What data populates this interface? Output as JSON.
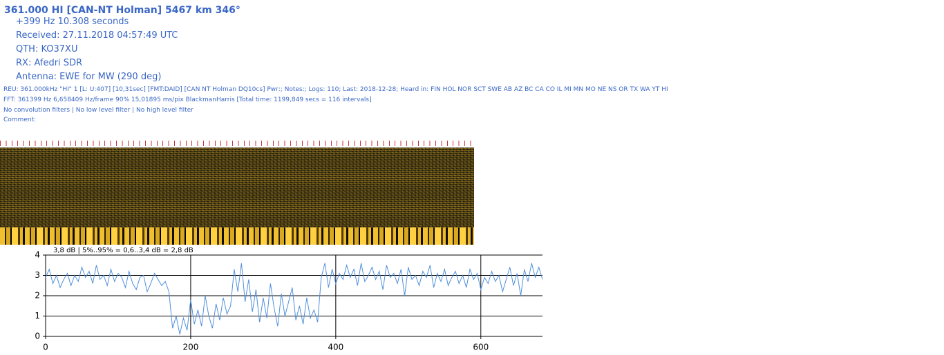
{
  "header": {
    "title": "361.000 HI [CAN-NT Holman] 5467 km 346°",
    "lines": [
      "+399 Hz 10.308 seconds",
      "Received: 27.11.2018 04:57:49 UTC",
      "QTH: KO37XU",
      "RX: Afedri SDR",
      "Antenna: EWE for MW (290 deg)"
    ],
    "details": [
      "REU: 361.000kHz \"HI\" 1 [L: U:407] [10,31sec] [FMT:DAID] [CAN NT Holman DQ10cs] Pwr:; Notes:; Logs: 110; Last: 2018-12-28; Heard in: FIN HOL NOR SCT SWE AB AZ BC CA CO IL MI MN MO NE NS OR TX WA YT HI",
      "FFT: 361399 Hz 6,658409 Hz/frame 90% 15,01895 ms/pix BlackmanHarris [Total time: 1199,849 secs = 116 intervals]",
      "No convolution filters | No low level filter | No high level filter",
      "Comment:"
    ]
  },
  "chart_data": {
    "type": "line",
    "annotation": "3,8 dB | 5%..95% = 0,6..3,4 dB = 2,8 dB",
    "color": "#4f8fdc",
    "x": [
      0,
      5,
      10,
      15,
      20,
      25,
      30,
      35,
      40,
      45,
      50,
      55,
      60,
      65,
      70,
      75,
      80,
      85,
      90,
      95,
      100,
      105,
      110,
      115,
      120,
      125,
      130,
      135,
      140,
      145,
      150,
      155,
      160,
      165,
      170,
      175,
      180,
      185,
      190,
      195,
      200,
      205,
      210,
      215,
      220,
      225,
      230,
      235,
      240,
      245,
      250,
      255,
      260,
      265,
      270,
      275,
      280,
      285,
      290,
      295,
      300,
      305,
      310,
      315,
      320,
      325,
      330,
      335,
      340,
      345,
      350,
      355,
      360,
      365,
      370,
      375,
      380,
      385,
      390,
      395,
      400,
      405,
      410,
      415,
      420,
      425,
      430,
      435,
      440,
      445,
      450,
      455,
      460,
      465,
      470,
      475,
      480,
      485,
      490,
      495,
      500,
      505,
      510,
      515,
      520,
      525,
      530,
      535,
      540,
      545,
      550,
      555,
      560,
      565,
      570,
      575,
      580,
      585,
      590,
      595,
      600,
      605,
      610,
      615,
      620,
      625,
      630,
      635,
      640,
      645,
      650,
      655,
      660,
      665,
      670,
      675,
      680,
      685
    ],
    "values": [
      2.9,
      3.3,
      2.6,
      3.0,
      2.4,
      2.8,
      3.1,
      2.5,
      3.0,
      2.7,
      3.4,
      2.9,
      3.2,
      2.6,
      3.5,
      2.8,
      3.0,
      2.5,
      3.3,
      2.7,
      3.1,
      2.9,
      2.4,
      3.2,
      2.6,
      2.3,
      2.9,
      3.0,
      2.2,
      2.6,
      3.1,
      2.8,
      2.5,
      2.7,
      2.2,
      0.4,
      1.0,
      0.1,
      0.9,
      0.3,
      1.8,
      0.6,
      1.3,
      0.5,
      2.0,
      1.0,
      0.4,
      1.6,
      0.8,
      1.9,
      1.1,
      1.5,
      3.3,
      2.2,
      3.6,
      1.7,
      2.8,
      1.2,
      2.3,
      0.7,
      1.9,
      0.9,
      2.6,
      1.4,
      0.5,
      2.1,
      1.0,
      1.7,
      2.4,
      0.8,
      1.5,
      0.6,
      1.9,
      0.9,
      1.3,
      0.7,
      2.9,
      3.6,
      2.4,
      3.3,
      2.6,
      3.1,
      2.8,
      3.5,
      2.9,
      3.3,
      2.5,
      3.6,
      2.7,
      3.0,
      3.4,
      2.8,
      3.2,
      2.3,
      3.5,
      2.9,
      3.1,
      2.6,
      3.3,
      2.0,
      3.4,
      2.8,
      3.0,
      2.5,
      3.2,
      2.9,
      3.5,
      2.4,
      3.1,
      2.7,
      3.3,
      2.5,
      2.9,
      3.2,
      2.6,
      3.0,
      2.4,
      3.3,
      2.8,
      3.1,
      2.3,
      2.9,
      2.6,
      3.2,
      2.7,
      3.0,
      2.2,
      2.8,
      3.4,
      2.5,
      3.1,
      2.0,
      3.3,
      2.7,
      3.6,
      2.9,
      3.4,
      2.8
    ],
    "xlim": [
      0,
      685
    ],
    "ylim": [
      0,
      4
    ],
    "xticks": [
      0,
      200,
      400,
      600
    ],
    "yticks": [
      0,
      1,
      2,
      3,
      4
    ],
    "grid": true
  }
}
